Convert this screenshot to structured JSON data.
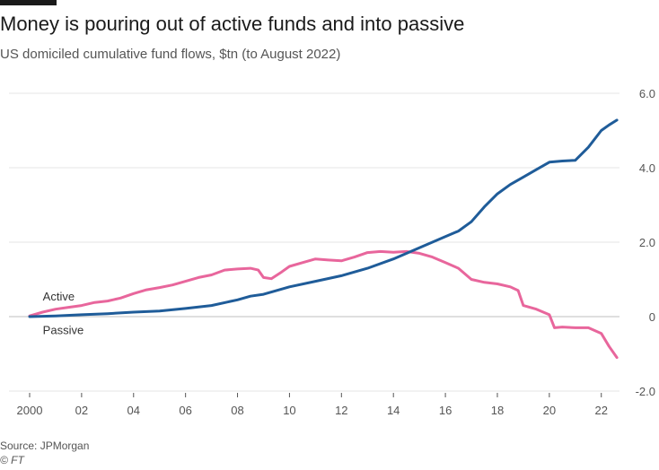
{
  "title": "Money is pouring out of active funds and into passive",
  "subtitle": "US domiciled cumulative fund flows, $tn (to August 2022)",
  "source": "Source: JPMorgan",
  "copyright": "© FT",
  "colors": {
    "passive": "#1f5c99",
    "active": "#e8669c",
    "grid": "#e6e6e6",
    "zero": "#bfbfbf"
  },
  "chart_data": {
    "type": "line",
    "title": "Money is pouring out of active funds and into passive",
    "subtitle": "US domiciled cumulative fund flows, $tn (to August 2022)",
    "xlabel": "",
    "ylabel": "",
    "xlim": [
      2000,
      2022.7
    ],
    "ylim": [
      -2.0,
      6.0
    ],
    "x_ticks": [
      {
        "value": 2000,
        "label": "2000"
      },
      {
        "value": 2002,
        "label": "02"
      },
      {
        "value": 2004,
        "label": "04"
      },
      {
        "value": 2006,
        "label": "06"
      },
      {
        "value": 2008,
        "label": "08"
      },
      {
        "value": 2010,
        "label": "10"
      },
      {
        "value": 2012,
        "label": "12"
      },
      {
        "value": 2014,
        "label": "14"
      },
      {
        "value": 2016,
        "label": "16"
      },
      {
        "value": 2018,
        "label": "18"
      },
      {
        "value": 2020,
        "label": "20"
      },
      {
        "value": 2022,
        "label": "22"
      }
    ],
    "y_ticks": [
      {
        "value": 6.0,
        "label": "6.0"
      },
      {
        "value": 4.0,
        "label": "4.0"
      },
      {
        "value": 2.0,
        "label": "2.0"
      },
      {
        "value": 0,
        "label": "0"
      },
      {
        "value": -2.0,
        "label": "-2.0"
      }
    ],
    "grid": true,
    "y_axis_side": "right",
    "series": [
      {
        "name": "Active",
        "color": "#e8669c",
        "points": [
          [
            2000,
            0.02
          ],
          [
            2000.5,
            0.12
          ],
          [
            2001,
            0.2
          ],
          [
            2001.5,
            0.25
          ],
          [
            2002,
            0.3
          ],
          [
            2002.5,
            0.38
          ],
          [
            2003,
            0.42
          ],
          [
            2003.5,
            0.5
          ],
          [
            2004,
            0.62
          ],
          [
            2004.5,
            0.72
          ],
          [
            2005,
            0.78
          ],
          [
            2005.5,
            0.85
          ],
          [
            2006,
            0.95
          ],
          [
            2006.5,
            1.05
          ],
          [
            2007,
            1.12
          ],
          [
            2007.5,
            1.25
          ],
          [
            2008,
            1.28
          ],
          [
            2008.5,
            1.3
          ],
          [
            2008.8,
            1.25
          ],
          [
            2009,
            1.05
          ],
          [
            2009.3,
            1.02
          ],
          [
            2009.7,
            1.2
          ],
          [
            2010,
            1.35
          ],
          [
            2010.5,
            1.45
          ],
          [
            2011,
            1.55
          ],
          [
            2011.5,
            1.52
          ],
          [
            2012,
            1.5
          ],
          [
            2012.5,
            1.6
          ],
          [
            2013,
            1.72
          ],
          [
            2013.5,
            1.75
          ],
          [
            2014,
            1.73
          ],
          [
            2014.5,
            1.75
          ],
          [
            2015,
            1.7
          ],
          [
            2015.5,
            1.6
          ],
          [
            2016,
            1.45
          ],
          [
            2016.5,
            1.3
          ],
          [
            2017,
            1.0
          ],
          [
            2017.5,
            0.92
          ],
          [
            2018,
            0.88
          ],
          [
            2018.5,
            0.8
          ],
          [
            2018.8,
            0.7
          ],
          [
            2019,
            0.3
          ],
          [
            2019.5,
            0.2
          ],
          [
            2020,
            0.05
          ],
          [
            2020.2,
            -0.3
          ],
          [
            2020.5,
            -0.28
          ],
          [
            2021,
            -0.3
          ],
          [
            2021.5,
            -0.3
          ],
          [
            2022,
            -0.45
          ],
          [
            2022.3,
            -0.8
          ],
          [
            2022.6,
            -1.1
          ]
        ]
      },
      {
        "name": "Passive",
        "color": "#1f5c99",
        "points": [
          [
            2000,
            0.0
          ],
          [
            2001,
            0.02
          ],
          [
            2002,
            0.05
          ],
          [
            2003,
            0.08
          ],
          [
            2004,
            0.12
          ],
          [
            2005,
            0.15
          ],
          [
            2006,
            0.22
          ],
          [
            2007,
            0.3
          ],
          [
            2008,
            0.45
          ],
          [
            2008.5,
            0.55
          ],
          [
            2009,
            0.6
          ],
          [
            2009.5,
            0.7
          ],
          [
            2010,
            0.8
          ],
          [
            2011,
            0.95
          ],
          [
            2012,
            1.1
          ],
          [
            2013,
            1.3
          ],
          [
            2014,
            1.55
          ],
          [
            2015,
            1.85
          ],
          [
            2016,
            2.15
          ],
          [
            2016.5,
            2.3
          ],
          [
            2017,
            2.55
          ],
          [
            2017.5,
            2.95
          ],
          [
            2018,
            3.3
          ],
          [
            2018.5,
            3.55
          ],
          [
            2019,
            3.75
          ],
          [
            2019.5,
            3.95
          ],
          [
            2020,
            4.15
          ],
          [
            2020.5,
            4.18
          ],
          [
            2021,
            4.2
          ],
          [
            2021.5,
            4.55
          ],
          [
            2022,
            5.0
          ],
          [
            2022.3,
            5.15
          ],
          [
            2022.6,
            5.28
          ]
        ]
      }
    ],
    "series_labels": [
      {
        "text": "Active",
        "x": 2000.3,
        "y": 0.55
      },
      {
        "text": "Passive",
        "x": 2000.3,
        "y": -0.35
      }
    ]
  }
}
